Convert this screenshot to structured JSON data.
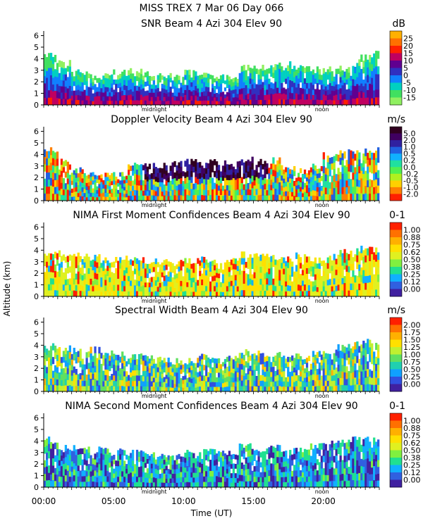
{
  "header": {
    "line1": "MISS TREX    7 Mar 06 Day 066"
  },
  "axes": {
    "ylabel": "Altitude (km)",
    "xlabel": "Time (UT)",
    "x_ticks": [
      "00:00",
      "05:00",
      "10:00",
      "15:00",
      "20:00"
    ],
    "x_tick_hours": [
      0,
      5,
      10,
      15,
      20
    ],
    "x_range_hours": [
      0,
      24
    ],
    "y_ticks": [
      "0",
      "1",
      "2",
      "3",
      "4",
      "5",
      "6"
    ],
    "y_range_km": [
      0,
      6.4
    ],
    "midnight_label": "midnight",
    "noon_label": "noon",
    "midnight_hour": 7.9,
    "noon_hour": 19.9
  },
  "chart_data": [
    {
      "type": "heatmap",
      "title": "SNR Beam 4 Azi 304 Elev 90",
      "unit": "dB",
      "colorbar_ticks": [
        "25",
        "20",
        "15",
        "10",
        "5",
        "0",
        "-5",
        "-10",
        "-15"
      ],
      "colorbar_colors": [
        "#ffb000",
        "#ff7000",
        "#ff2000",
        "#c00060",
        "#600090",
        "#3030c0",
        "#1080ff",
        "#00d0c0",
        "#40e060",
        "#90f060"
      ],
      "top_km": [
        4.3,
        3.6,
        3.0,
        2.6,
        2.7,
        2.8,
        2.9,
        2.7,
        2.6,
        2.6,
        2.8,
        2.6,
        2.4,
        2.5,
        3.3,
        3.2,
        3.4,
        3.5,
        3.3,
        3.2,
        3.1,
        3.2,
        4.1,
        4.4
      ]
    },
    {
      "type": "heatmap",
      "title": "Doppler Velocity Beam 4 Azi 304 Elev 90",
      "unit": "m/s",
      "colorbar_ticks": [
        "5.0",
        "2.0",
        "1.0",
        "0.5",
        "0.2",
        "0.0",
        "-0.2",
        "-0.5",
        "-1.0",
        "-2.0"
      ],
      "colorbar_colors": [
        "#300020",
        "#400060",
        "#3020a0",
        "#2060e0",
        "#10b0ff",
        "#20e0a0",
        "#50f050",
        "#b0f020",
        "#ffd000",
        "#ff8000",
        "#ff2000"
      ],
      "top_km": [
        4.4,
        3.4,
        2.6,
        2.3,
        2.2,
        2.4,
        3.0,
        3.1,
        3.0,
        3.2,
        3.4,
        3.5,
        3.3,
        3.3,
        3.6,
        3.4,
        3.5,
        2.8,
        2.6,
        2.9,
        3.9,
        4.2,
        4.3,
        4.4
      ]
    },
    {
      "type": "heatmap",
      "title": "NIMA First Moment Confidences Beam 4 Azi 304 Elev 90",
      "unit": "0-1",
      "colorbar_ticks": [
        "1.00",
        "0.88",
        "0.75",
        "0.62",
        "0.50",
        "0.38",
        "0.25",
        "0.12",
        "0.00"
      ],
      "colorbar_colors": [
        "#ff2000",
        "#ff7000",
        "#ffb000",
        "#ffe000",
        "#e0f020",
        "#80f040",
        "#20e090",
        "#10b0ff",
        "#3060e0",
        "#4020a0"
      ],
      "top_km": [
        3.8,
        3.7,
        3.5,
        3.4,
        3.2,
        3.3,
        3.2,
        3.1,
        3.0,
        2.9,
        3.1,
        3.2,
        3.0,
        3.1,
        3.6,
        3.5,
        3.3,
        3.2,
        3.5,
        3.1,
        3.4,
        3.9,
        4.1,
        4.2
      ]
    },
    {
      "type": "heatmap",
      "title": "Spectral Width Beam 4 Azi 304 Elev 90",
      "unit": "m/s",
      "colorbar_ticks": [
        "2.00",
        "1.75",
        "1.50",
        "1.25",
        "1.00",
        "0.75",
        "0.50",
        "0.25",
        "0.00"
      ],
      "colorbar_colors": [
        "#ff2000",
        "#ff7000",
        "#ffb000",
        "#ffe000",
        "#c0f030",
        "#60e060",
        "#20d0b0",
        "#10a0ff",
        "#3050e0",
        "#4020a0"
      ],
      "top_km": [
        3.9,
        3.7,
        3.5,
        3.6,
        3.4,
        3.3,
        3.1,
        3.0,
        2.8,
        2.6,
        2.7,
        3.0,
        2.8,
        2.9,
        3.4,
        3.3,
        3.2,
        3.1,
        3.0,
        3.3,
        3.5,
        3.9,
        4.2,
        4.3
      ]
    },
    {
      "type": "heatmap",
      "title": "NIMA Second Moment Confidences Beam 4 Azi 304 Elev 90",
      "unit": "0-1",
      "colorbar_ticks": [
        "1.00",
        "0.88",
        "0.75",
        "0.62",
        "0.50",
        "0.38",
        "0.25",
        "0.12",
        "0.00"
      ],
      "colorbar_colors": [
        "#ff2000",
        "#ff7000",
        "#ffb000",
        "#ffe000",
        "#e0f020",
        "#80f040",
        "#20e090",
        "#10b0ff",
        "#3060e0",
        "#4020a0"
      ],
      "top_km": [
        4.1,
        3.5,
        3.4,
        3.3,
        3.2,
        3.1,
        3.0,
        2.9,
        2.8,
        2.9,
        3.0,
        3.1,
        3.2,
        3.0,
        3.6,
        3.3,
        3.4,
        3.1,
        3.3,
        3.6,
        3.8,
        4.0,
        4.1,
        4.2
      ]
    }
  ]
}
